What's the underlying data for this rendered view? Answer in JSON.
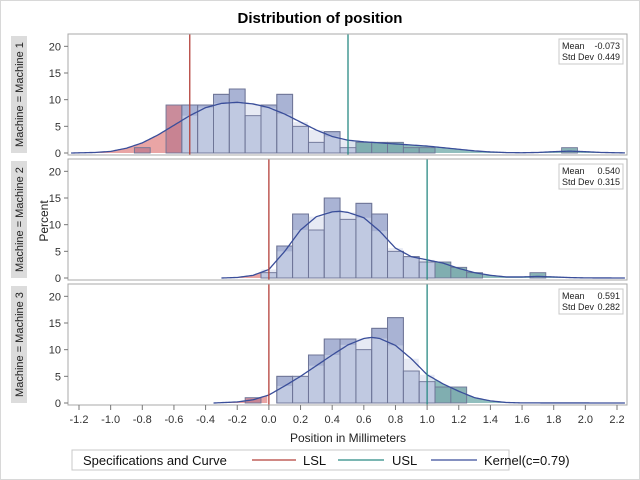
{
  "chart_data": {
    "type": "bar",
    "title": "Distribution of position",
    "xlabel": "Position in Millimeters",
    "ylabel": "Percent",
    "xlim": [
      -1.25,
      2.25
    ],
    "xticks": [
      -1.2,
      -1.0,
      -0.8,
      -0.6,
      -0.4,
      -0.2,
      0.0,
      0.2,
      0.4,
      0.6,
      0.8,
      1.0,
      1.2,
      1.4,
      1.6,
      1.8,
      2.0,
      2.2
    ],
    "xtick_labels": [
      "-1.2",
      "-1.0",
      "-0.8",
      "-0.6",
      "-0.4",
      "-0.2",
      "0.0",
      "0.2",
      "0.4",
      "0.6",
      "0.8",
      "1.0",
      "1.2",
      "1.4",
      "1.6",
      "1.8",
      "2.0",
      "2.2"
    ],
    "ylim": [
      0,
      21
    ],
    "yticks": [
      0,
      5,
      10,
      15,
      20
    ],
    "bin_width": 0.1,
    "colors": {
      "bar": "#a9b3d4",
      "bar_under_curve": "#c4cce3",
      "bar_edge": "#6e7597",
      "curve": "#3a4e9a",
      "lsl": "#b4403a",
      "usl": "#2a8a84",
      "lsl_fill": "#e8a0a0",
      "usl_fill": "#8cbcba",
      "strip_bg": "#dcdcdc"
    },
    "panels": [
      {
        "strip_label": "Machine = Machine 1",
        "mean_label": "Mean",
        "mean": "-0.073",
        "std_label": "Std Dev",
        "std": "0.449",
        "lsl": -0.5,
        "usl": 0.5,
        "bins": [
          -0.8,
          -0.6,
          -0.5,
          -0.4,
          -0.3,
          -0.2,
          -0.1,
          0.0,
          0.1,
          0.2,
          0.3,
          0.4,
          0.5,
          0.6,
          0.7,
          0.8,
          0.9,
          1.0,
          1.9
        ],
        "values": [
          1,
          9,
          9,
          9,
          11,
          12,
          7,
          9,
          11,
          5,
          2,
          4,
          1,
          2,
          2,
          2,
          1,
          1,
          1
        ],
        "kernel": {
          "x": [
            -1.25,
            -1.1,
            -1.0,
            -0.9,
            -0.8,
            -0.7,
            -0.6,
            -0.5,
            -0.4,
            -0.3,
            -0.2,
            -0.1,
            0.0,
            0.1,
            0.2,
            0.3,
            0.4,
            0.5,
            0.6,
            0.7,
            0.8,
            0.9,
            1.0,
            1.1,
            1.2,
            1.3,
            1.4,
            1.5,
            1.6,
            1.7,
            1.8,
            1.9,
            2.0,
            2.1,
            2.25
          ],
          "y": [
            0,
            0.1,
            0.3,
            0.9,
            1.9,
            3.4,
            5.2,
            7.0,
            8.5,
            9.3,
            9.5,
            9.2,
            8.5,
            7.3,
            5.8,
            4.3,
            3.1,
            2.4,
            2.1,
            1.9,
            1.7,
            1.5,
            1.3,
            1.0,
            0.7,
            0.4,
            0.2,
            0.08,
            0.05,
            0.1,
            0.25,
            0.35,
            0.25,
            0.1,
            0.02
          ]
        }
      },
      {
        "strip_label": "Machine = Machine 2",
        "mean_label": "Mean",
        "mean": "0.540",
        "std_label": "Std Dev",
        "std": "0.315",
        "lsl": 0.0,
        "usl": 1.0,
        "bins": [
          0.0,
          0.1,
          0.2,
          0.3,
          0.4,
          0.5,
          0.6,
          0.7,
          0.8,
          0.9,
          1.0,
          1.1,
          1.2,
          1.3,
          1.7
        ],
        "values": [
          1,
          6,
          12,
          9,
          15,
          11,
          14,
          12,
          5,
          4,
          3,
          3,
          2,
          1,
          1
        ],
        "kernel": {
          "x": [
            -0.3,
            -0.2,
            -0.1,
            0.0,
            0.1,
            0.2,
            0.3,
            0.4,
            0.45,
            0.5,
            0.6,
            0.7,
            0.8,
            0.9,
            1.0,
            1.1,
            1.2,
            1.3,
            1.4,
            1.5,
            1.6,
            1.7,
            1.8,
            1.9,
            2.0,
            2.25
          ],
          "y": [
            0,
            0.1,
            0.5,
            1.6,
            5.0,
            9.0,
            11.5,
            12.4,
            12.5,
            12.3,
            11.3,
            8.8,
            5.6,
            4.0,
            3.4,
            2.8,
            1.8,
            1.0,
            0.5,
            0.2,
            0.2,
            0.3,
            0.2,
            0.08,
            0.02,
            0
          ]
        }
      },
      {
        "strip_label": "Machine = Machine 3",
        "mean_label": "Mean",
        "mean": "0.591",
        "std_label": "Std Dev",
        "std": "0.282",
        "lsl": 0.0,
        "usl": 1.0,
        "bins": [
          -0.1,
          0.1,
          0.2,
          0.3,
          0.4,
          0.5,
          0.6,
          0.7,
          0.8,
          0.9,
          1.0,
          1.1,
          1.2
        ],
        "values": [
          1,
          5,
          5,
          9,
          12,
          12,
          10,
          14,
          16,
          6,
          4,
          3,
          3
        ],
        "kernel": {
          "x": [
            -0.35,
            -0.2,
            -0.1,
            0.0,
            0.1,
            0.2,
            0.3,
            0.4,
            0.5,
            0.6,
            0.65,
            0.7,
            0.8,
            0.9,
            1.0,
            1.1,
            1.2,
            1.3,
            1.4,
            1.5,
            1.6,
            2.25
          ],
          "y": [
            0,
            0.2,
            0.6,
            1.5,
            3.2,
            5.0,
            7.0,
            9.0,
            10.9,
            12.1,
            12.3,
            12.1,
            10.8,
            8.3,
            5.3,
            3.6,
            2.2,
            1.0,
            0.4,
            0.1,
            0.02,
            0
          ]
        }
      }
    ],
    "legend": {
      "title": "Specifications and Curve",
      "items": [
        {
          "label": "LSL",
          "color": "#b4403a"
        },
        {
          "label": "USL",
          "color": "#2a8a84"
        },
        {
          "label": "Kernel(c=0.79)",
          "color": "#3a4e9a"
        }
      ],
      "position": "bottom"
    }
  }
}
